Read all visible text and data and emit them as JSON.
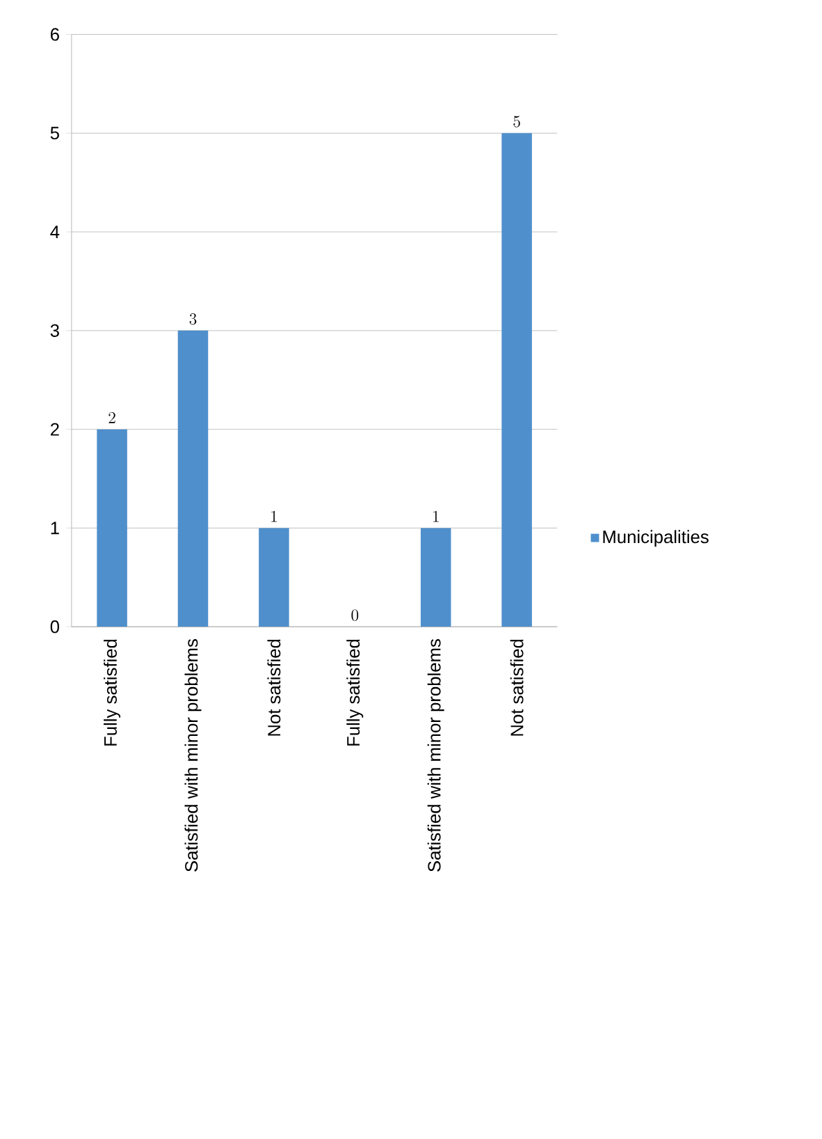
{
  "chart_data": {
    "type": "bar",
    "categories": [
      "Fully satisfied",
      "Satisfied with minor problems",
      "Not satisfied",
      "Fully satisfied",
      "Satisfied with minor problems",
      "Not satisfied"
    ],
    "series": [
      {
        "name": "Municipalities",
        "color": "#4f8fcc",
        "values": [
          2,
          3,
          1,
          0,
          1,
          5
        ]
      }
    ],
    "ylim": [
      0,
      6
    ],
    "yticks": [
      0,
      1,
      2,
      3,
      4,
      5,
      6
    ],
    "grid": "y",
    "legend": "right",
    "data_labels": true
  }
}
